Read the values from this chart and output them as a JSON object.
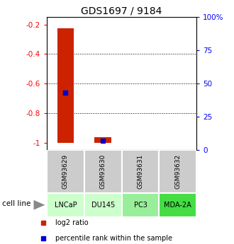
{
  "title": "GDS1697 / 9184",
  "samples": [
    "GSM93629",
    "GSM93630",
    "GSM93631",
    "GSM93632"
  ],
  "cell_lines": [
    "LNCaP",
    "DU145",
    "PC3",
    "MDA-2A"
  ],
  "cell_line_colors": [
    "#ccffcc",
    "#ccffcc",
    "#99ee99",
    "#44dd44"
  ],
  "log2_ratios": [
    -0.225,
    -0.965,
    -1.0,
    -1.0
  ],
  "log2_ratio_bottoms": [
    -1.0,
    -1.0,
    -1.0,
    -1.0
  ],
  "percentile_ranks_pct": [
    43,
    7,
    null,
    null
  ],
  "ylim_left": [
    -1.05,
    -0.15
  ],
  "yticks_left": [
    -1.0,
    -0.8,
    -0.6,
    -0.4,
    -0.2
  ],
  "ytick_labels_left": [
    "-1",
    "-0.8",
    "-0.6",
    "-0.4",
    "-0.2"
  ],
  "yticks_right": [
    0,
    25,
    50,
    75,
    100
  ],
  "ytick_labels_right": [
    "0",
    "25",
    "50",
    "75",
    "100%"
  ],
  "bar_width": 0.45,
  "bar_color": "#cc2200",
  "percentile_color": "#0000cc",
  "legend_red_label": "log2 ratio",
  "legend_blue_label": "percentile rank within the sample",
  "cell_line_row_label": "cell line"
}
